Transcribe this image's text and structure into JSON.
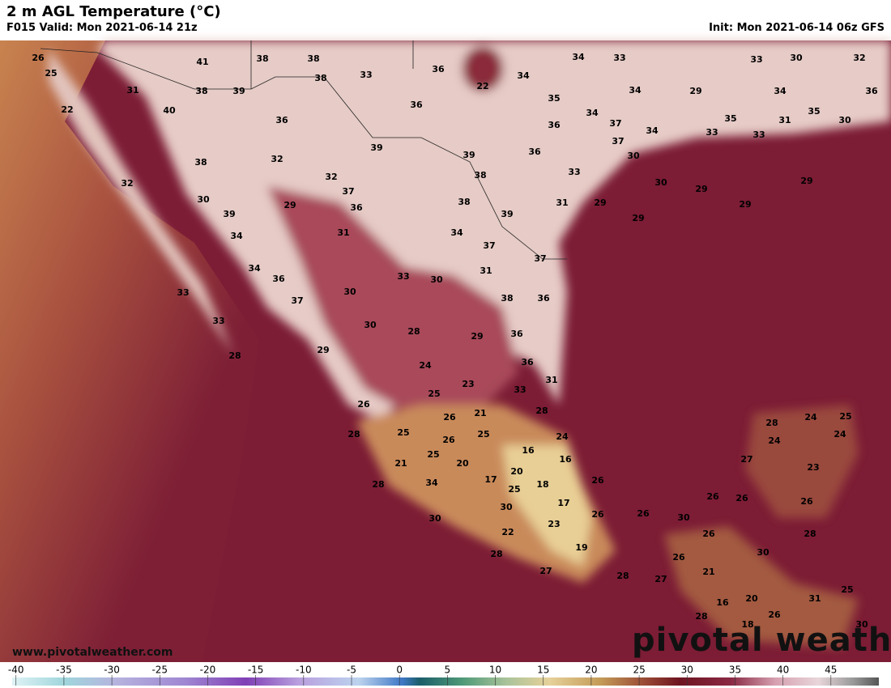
{
  "header": {
    "title": "2 m AGL Temperature (°C)",
    "valid": "F015 Valid: Mon 2021-06-14 21z",
    "init": "Init: Mon 2021-06-14 06z GFS"
  },
  "map": {
    "labels": [
      26,
      25,
      22,
      31,
      41,
      38,
      38,
      38,
      33,
      36,
      22,
      34,
      34,
      33,
      33,
      30,
      32,
      38,
      39,
      40,
      36,
      35,
      34,
      29,
      34,
      36,
      36,
      34,
      36,
      37,
      34,
      33,
      35,
      31,
      35,
      30,
      33,
      39,
      39,
      36,
      37,
      30,
      38,
      32,
      33,
      32,
      38,
      30,
      29,
      29,
      32,
      37,
      30,
      29,
      36,
      38,
      31,
      29,
      29,
      39,
      39,
      29,
      34,
      31,
      34,
      37,
      34,
      37,
      31,
      36,
      33,
      30,
      33,
      30,
      37,
      38,
      36,
      33,
      30,
      28,
      29,
      36,
      28,
      29,
      36,
      24,
      31,
      23,
      25,
      33,
      26,
      21,
      26,
      28,
      28,
      25,
      26,
      25,
      24,
      16,
      16,
      21,
      25,
      20,
      20,
      17,
      25,
      18,
      28,
      34,
      30,
      17,
      26,
      30,
      26,
      23,
      22,
      28,
      19,
      27,
      28,
      26,
      30,
      26,
      26,
      26,
      26,
      21,
      27,
      28,
      24,
      25,
      24,
      24,
      27,
      23,
      26,
      28,
      30,
      25,
      31,
      16,
      20,
      28,
      26,
      18,
      30
    ],
    "website": "www.pivotalweather.com",
    "watermark": "pivotal weather"
  },
  "colorbar": {
    "lim": [
      -40.4,
      50
    ],
    "ticks": [
      -40,
      -35,
      -30,
      -25,
      -20,
      -15,
      -10,
      -5,
      0,
      5,
      10,
      15,
      20,
      25,
      30,
      35,
      40,
      45
    ]
  }
}
